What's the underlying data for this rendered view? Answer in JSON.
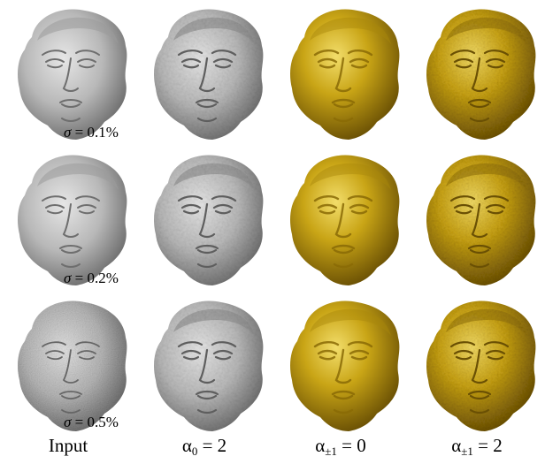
{
  "rows": [
    {
      "sigma_var": "σ",
      "sigma_eq": " = 0.1%"
    },
    {
      "sigma_var": "σ",
      "sigma_eq": " = 0.2%"
    },
    {
      "sigma_var": "σ",
      "sigma_eq": " = 0.5%"
    }
  ],
  "columns": [
    {
      "label": "Input"
    },
    {
      "label_main": "α",
      "label_sub": "0",
      "label_eq": " = 2"
    },
    {
      "label_main": "α",
      "label_sub": "±1",
      "label_eq": " = 0"
    },
    {
      "label_main": "α",
      "label_sub": "±1",
      "label_eq": " = 2"
    }
  ],
  "colors": {
    "gray_face": "#b8b8b8",
    "gray_shadow": "#7a7a7a",
    "gold_face": "#c9a516",
    "gold_shadow": "#7a5e05"
  }
}
